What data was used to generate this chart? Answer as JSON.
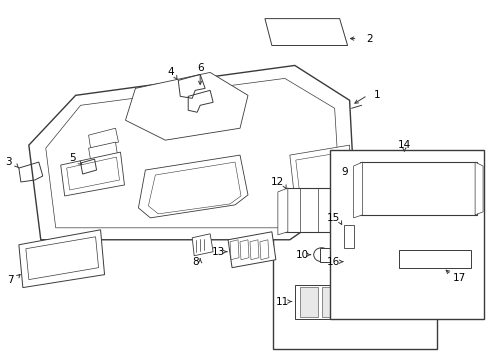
{
  "bg_color": "#ffffff",
  "fig_width": 4.89,
  "fig_height": 3.6,
  "dpi": 100,
  "line_color": "#3a3a3a",
  "line_width": 0.7,
  "label_fontsize": 7.5
}
